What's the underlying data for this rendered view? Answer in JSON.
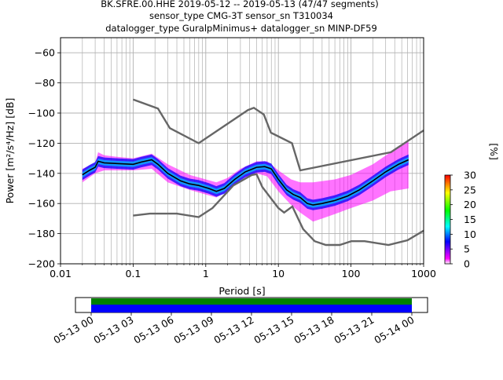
{
  "chart_data": {
    "type": "heatmap",
    "title_lines": [
      "BK.SFRE.00.HHE   2019-05-12 -- 2019-05-13  (47/47 segments)",
      "sensor_type CMG-3T sensor_sn T310034",
      "datalogger_type GuralpMinimus+ datalogger_sn MINP-DF59"
    ],
    "xlabel": "Period [s]",
    "ylabel": "Power [m²/s⁴/Hz] [dB]",
    "xscale": "log",
    "xlim": [
      0.01,
      1000
    ],
    "ylim": [
      -200,
      -50
    ],
    "x_ticks": [
      {
        "v": 0.01,
        "label": "0.01"
      },
      {
        "v": 0.1,
        "label": "0.1"
      },
      {
        "v": 1,
        "label": "1"
      },
      {
        "v": 10,
        "label": "10"
      },
      {
        "v": 100,
        "label": "100"
      },
      {
        "v": 1000,
        "label": "1000"
      }
    ],
    "y_ticks": [
      {
        "v": -60,
        "label": "−60"
      },
      {
        "v": -80,
        "label": "−80"
      },
      {
        "v": -100,
        "label": "−100"
      },
      {
        "v": -120,
        "label": "−120"
      },
      {
        "v": -140,
        "label": "−140"
      },
      {
        "v": -160,
        "label": "−160"
      },
      {
        "v": -180,
        "label": "−180"
      },
      {
        "v": -200,
        "label": "−200"
      }
    ],
    "grid": true,
    "colorbar": {
      "label": "[%]",
      "min": 0,
      "max": 30,
      "ticks": [
        {
          "v": 0,
          "label": "0"
        },
        {
          "v": 5,
          "label": "5"
        },
        {
          "v": 10,
          "label": "10"
        },
        {
          "v": 15,
          "label": "15"
        },
        {
          "v": 20,
          "label": "20"
        },
        {
          "v": 25,
          "label": "25"
        },
        {
          "v": 30,
          "label": "30"
        }
      ],
      "colors": [
        "#ffffff",
        "#ff00ff",
        "#0000ff",
        "#00ffff",
        "#00ff00",
        "#ffff00",
        "#ff8000",
        "#ff0000"
      ]
    },
    "nhnm": [
      [
        0.1,
        -91
      ],
      [
        0.22,
        -97
      ],
      [
        0.32,
        -110
      ],
      [
        0.8,
        -120
      ],
      [
        3.8,
        -98
      ],
      [
        4.6,
        -96.5
      ],
      [
        6.3,
        -101
      ],
      [
        7.9,
        -113
      ],
      [
        15.4,
        -120
      ],
      [
        20,
        -138
      ],
      [
        354,
        -126
      ],
      [
        1000,
        -111.5
      ]
    ],
    "nlnm": [
      [
        0.1,
        -168
      ],
      [
        0.17,
        -166.7
      ],
      [
        0.4,
        -166.7
      ],
      [
        0.8,
        -169
      ],
      [
        1.24,
        -163
      ],
      [
        2.4,
        -148
      ],
      [
        4.3,
        -141.1
      ],
      [
        5,
        -140.5
      ],
      [
        6,
        -149
      ],
      [
        10,
        -163
      ],
      [
        12,
        -166
      ],
      [
        15.6,
        -162
      ],
      [
        21.9,
        -177
      ],
      [
        31.6,
        -185
      ],
      [
        45,
        -187.5
      ],
      [
        70,
        -187.5
      ],
      [
        101,
        -185
      ],
      [
        154,
        -185
      ],
      [
        328,
        -187.5
      ],
      [
        600,
        -184.4
      ],
      [
        1000,
        -178
      ]
    ],
    "mean_curve": [
      [
        0.02,
        -141
      ],
      [
        0.025,
        -138
      ],
      [
        0.03,
        -136
      ],
      [
        0.033,
        -132
      ],
      [
        0.04,
        -133
      ],
      [
        0.06,
        -133.5
      ],
      [
        0.1,
        -134
      ],
      [
        0.13,
        -132.5
      ],
      [
        0.18,
        -131
      ],
      [
        0.22,
        -134
      ],
      [
        0.3,
        -140
      ],
      [
        0.45,
        -145
      ],
      [
        0.6,
        -147
      ],
      [
        0.8,
        -148
      ],
      [
        1.1,
        -150
      ],
      [
        1.4,
        -152
      ],
      [
        1.8,
        -150
      ],
      [
        2.5,
        -144
      ],
      [
        3.5,
        -139
      ],
      [
        5,
        -136
      ],
      [
        6.5,
        -135.5
      ],
      [
        8,
        -137
      ],
      [
        10,
        -144
      ],
      [
        13,
        -151
      ],
      [
        16,
        -154
      ],
      [
        20,
        -156
      ],
      [
        25,
        -160
      ],
      [
        30,
        -161
      ],
      [
        40,
        -160
      ],
      [
        60,
        -158
      ],
      [
        90,
        -155
      ],
      [
        130,
        -151
      ],
      [
        200,
        -145
      ],
      [
        300,
        -139
      ],
      [
        450,
        -134
      ],
      [
        620,
        -131
      ]
    ],
    "density_band": {
      "upper": [
        [
          0.02,
          -137
        ],
        [
          0.03,
          -133
        ],
        [
          0.033,
          -126
        ],
        [
          0.04,
          -128
        ],
        [
          0.06,
          -129
        ],
        [
          0.1,
          -130
        ],
        [
          0.18,
          -127
        ],
        [
          0.3,
          -134
        ],
        [
          0.6,
          -141
        ],
        [
          1,
          -144
        ],
        [
          1.4,
          -146
        ],
        [
          2,
          -143
        ],
        [
          3,
          -137
        ],
        [
          5,
          -132
        ],
        [
          7,
          -132
        ],
        [
          10,
          -138
        ],
        [
          15,
          -144
        ],
        [
          20,
          -146
        ],
        [
          30,
          -146
        ],
        [
          60,
          -144
        ],
        [
          100,
          -141
        ],
        [
          200,
          -134
        ],
        [
          350,
          -126
        ],
        [
          620,
          -119
        ]
      ],
      "lower": [
        [
          620,
          -150
        ],
        [
          350,
          -152
        ],
        [
          200,
          -158
        ],
        [
          100,
          -163
        ],
        [
          60,
          -167
        ],
        [
          40,
          -170
        ],
        [
          30,
          -172
        ],
        [
          20,
          -166
        ],
        [
          15,
          -161
        ],
        [
          10,
          -152
        ],
        [
          7,
          -142
        ],
        [
          5,
          -140
        ],
        [
          3,
          -144
        ],
        [
          2,
          -152
        ],
        [
          1.4,
          -156
        ],
        [
          1,
          -154
        ],
        [
          0.6,
          -151
        ],
        [
          0.3,
          -146
        ],
        [
          0.18,
          -137
        ],
        [
          0.1,
          -138
        ],
        [
          0.06,
          -138
        ],
        [
          0.04,
          -138
        ],
        [
          0.03,
          -140
        ],
        [
          0.02,
          -146
        ]
      ]
    },
    "timeline": {
      "tick_labels": [
        "05-13 00",
        "05-13 03",
        "05-13 06",
        "05-13 09",
        "05-13 12",
        "05-13 15",
        "05-13 18",
        "05-13 21",
        "05-14 00"
      ],
      "span_start": "05-13 00",
      "span_end": "05-14 00",
      "data_color": "#0000ff",
      "gaps_color": "#008000"
    }
  }
}
